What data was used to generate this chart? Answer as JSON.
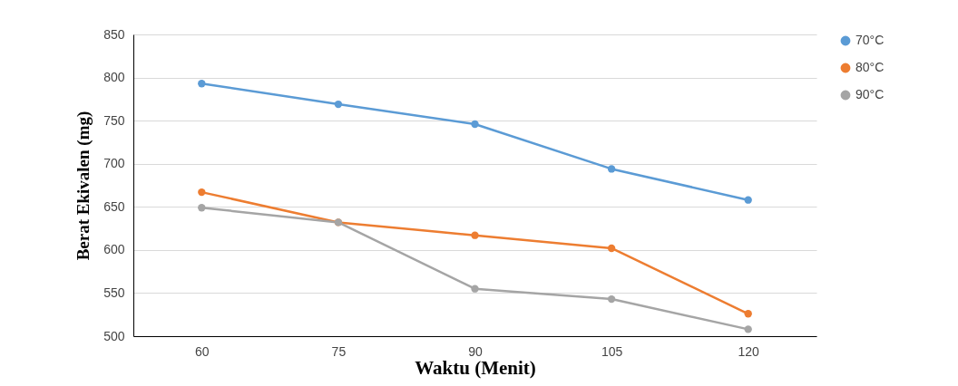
{
  "chart_data": {
    "type": "line",
    "xlabel": "Waktu  (Menit)",
    "ylabel": "Berat Ekivalen (mg)",
    "categories": [
      "60",
      "75",
      "90",
      "105",
      "120"
    ],
    "series": [
      {
        "name": "70°C",
        "color": "#5b9bd5",
        "values": [
          793,
          769,
          746,
          694,
          658
        ]
      },
      {
        "name": "80°C",
        "color": "#ed7d31",
        "values": [
          667,
          632,
          617,
          602,
          526
        ]
      },
      {
        "name": "90°C",
        "color": "#a5a5a5",
        "values": [
          649,
          632,
          555,
          543,
          508
        ]
      }
    ],
    "ylim": [
      500,
      850
    ],
    "yticks": [
      500,
      550,
      600,
      650,
      700,
      750,
      800,
      850
    ],
    "grid": "y",
    "legend": "right",
    "marker": "circle",
    "line_style": "solid"
  }
}
